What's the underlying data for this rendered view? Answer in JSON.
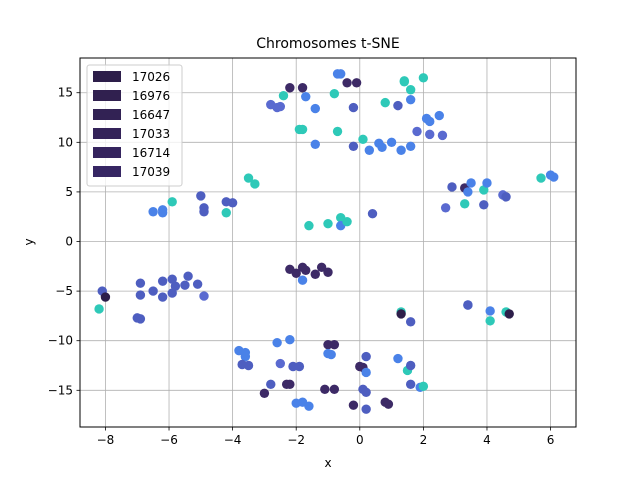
{
  "chart_data": {
    "type": "scatter",
    "title": "Chromosomes t-SNE",
    "xlabel": "x",
    "ylabel": "y",
    "xlim": [
      -8.8,
      6.8
    ],
    "ylim": [
      -18.7,
      18.5
    ],
    "xticks": [
      -8,
      -6,
      -4,
      -2,
      0,
      2,
      4,
      6
    ],
    "yticks": [
      -15,
      -10,
      -5,
      0,
      5,
      10,
      15
    ],
    "grid": true,
    "legend": {
      "position": "top-left",
      "entries": [
        {
          "label": "17026",
          "color": "#2d1e4a"
        },
        {
          "label": "16976",
          "color": "#30204f"
        },
        {
          "label": "16647",
          "color": "#322254"
        },
        {
          "label": "17033",
          "color": "#342359"
        },
        {
          "label": "16714",
          "color": "#35245e"
        },
        {
          "label": "17039",
          "color": "#362663"
        }
      ]
    },
    "points": [
      {
        "x": -2.2,
        "y": 15.5,
        "color": "#3d2a66"
      },
      {
        "x": -1.8,
        "y": 15.5,
        "color": "#3d2a66"
      },
      {
        "x": -1.7,
        "y": 14.6,
        "color": "#4a82e8"
      },
      {
        "x": -2.4,
        "y": 14.7,
        "color": "#2ec9b8"
      },
      {
        "x": -2.6,
        "y": 13.5,
        "color": "#5a6ad0"
      },
      {
        "x": -2.8,
        "y": 13.8,
        "color": "#5a6ad0"
      },
      {
        "x": -2.5,
        "y": 13.6,
        "color": "#5a6ad0"
      },
      {
        "x": -1.4,
        "y": 13.4,
        "color": "#4a82e8"
      },
      {
        "x": -1.9,
        "y": 11.3,
        "color": "#2ec9b8"
      },
      {
        "x": -1.8,
        "y": 11.3,
        "color": "#2ec9b8"
      },
      {
        "x": -1.4,
        "y": 9.8,
        "color": "#4a82e8"
      },
      {
        "x": -0.7,
        "y": 16.9,
        "color": "#4a82e8"
      },
      {
        "x": -0.6,
        "y": 16.9,
        "color": "#4a82e8"
      },
      {
        "x": -0.4,
        "y": 16.0,
        "color": "#3d2a66"
      },
      {
        "x": -0.1,
        "y": 16.0,
        "color": "#3d2a66"
      },
      {
        "x": -0.8,
        "y": 14.9,
        "color": "#2ec9b8"
      },
      {
        "x": -0.2,
        "y": 13.5,
        "color": "#4e5ec0"
      },
      {
        "x": -0.7,
        "y": 11.1,
        "color": "#2ec9b8"
      },
      {
        "x": 0.1,
        "y": 10.3,
        "color": "#2ec9b8"
      },
      {
        "x": -0.2,
        "y": 9.6,
        "color": "#4e5ec0"
      },
      {
        "x": 0.3,
        "y": 9.2,
        "color": "#4a82e8"
      },
      {
        "x": 0.6,
        "y": 9.9,
        "color": "#4a82e8"
      },
      {
        "x": 0.7,
        "y": 9.5,
        "color": "#4a82e8"
      },
      {
        "x": 1.0,
        "y": 10.0,
        "color": "#4a82e8"
      },
      {
        "x": 1.3,
        "y": 9.2,
        "color": "#4a82e8"
      },
      {
        "x": 1.6,
        "y": 9.6,
        "color": "#4a82e8"
      },
      {
        "x": 0.8,
        "y": 14.0,
        "color": "#2ec9b8"
      },
      {
        "x": 1.2,
        "y": 13.7,
        "color": "#4e5ec0"
      },
      {
        "x": 1.6,
        "y": 14.3,
        "color": "#4a82e8"
      },
      {
        "x": 1.4,
        "y": 16.1,
        "color": "#2ec9b8"
      },
      {
        "x": 1.4,
        "y": 16.2,
        "color": "#2ec9b8"
      },
      {
        "x": 1.6,
        "y": 15.3,
        "color": "#2ec9b8"
      },
      {
        "x": 2.0,
        "y": 16.5,
        "color": "#2ec9b8"
      },
      {
        "x": 1.8,
        "y": 11.1,
        "color": "#5a6ad0"
      },
      {
        "x": 2.1,
        "y": 12.4,
        "color": "#4a82e8"
      },
      {
        "x": 2.2,
        "y": 12.1,
        "color": "#4a82e8"
      },
      {
        "x": 2.2,
        "y": 10.8,
        "color": "#5a6ad0"
      },
      {
        "x": 2.5,
        "y": 12.7,
        "color": "#4a82e8"
      },
      {
        "x": 2.6,
        "y": 10.7,
        "color": "#5a6ad0"
      },
      {
        "x": -6.5,
        "y": 3.0,
        "color": "#4a82e8"
      },
      {
        "x": -6.2,
        "y": 3.2,
        "color": "#4a82e8"
      },
      {
        "x": -6.2,
        "y": 2.9,
        "color": "#4a82e8"
      },
      {
        "x": -5.9,
        "y": 4.0,
        "color": "#2ec9b8"
      },
      {
        "x": -5.0,
        "y": 4.6,
        "color": "#4e5ec0"
      },
      {
        "x": -4.9,
        "y": 3.4,
        "color": "#4e5ec0"
      },
      {
        "x": -4.9,
        "y": 3.0,
        "color": "#4e5ec0"
      },
      {
        "x": -4.2,
        "y": 4.0,
        "color": "#4e5ec0"
      },
      {
        "x": -4.2,
        "y": 2.9,
        "color": "#2ec9b8"
      },
      {
        "x": -4.0,
        "y": 3.9,
        "color": "#4e5ec0"
      },
      {
        "x": -3.5,
        "y": 6.4,
        "color": "#2ec9b8"
      },
      {
        "x": -3.3,
        "y": 5.8,
        "color": "#2ec9b8"
      },
      {
        "x": -1.6,
        "y": 1.6,
        "color": "#2ec9b8"
      },
      {
        "x": -1.0,
        "y": 1.8,
        "color": "#2ec9b8"
      },
      {
        "x": -0.6,
        "y": 2.4,
        "color": "#2ec9b8"
      },
      {
        "x": -0.6,
        "y": 1.6,
        "color": "#4a82e8"
      },
      {
        "x": -0.4,
        "y": 2.0,
        "color": "#2ec9b8"
      },
      {
        "x": 0.4,
        "y": 2.8,
        "color": "#4e5ec0"
      },
      {
        "x": 2.7,
        "y": 3.4,
        "color": "#5a6ad0"
      },
      {
        "x": 2.9,
        "y": 5.5,
        "color": "#4e5ec0"
      },
      {
        "x": 3.3,
        "y": 5.4,
        "color": "#3d2a66"
      },
      {
        "x": 3.4,
        "y": 5.0,
        "color": "#4a82e8"
      },
      {
        "x": 3.5,
        "y": 5.9,
        "color": "#4a82e8"
      },
      {
        "x": 3.3,
        "y": 3.8,
        "color": "#2ec9b8"
      },
      {
        "x": 3.9,
        "y": 3.7,
        "color": "#4e5ec0"
      },
      {
        "x": 3.9,
        "y": 5.2,
        "color": "#2ec9b8"
      },
      {
        "x": 4.0,
        "y": 5.9,
        "color": "#4a82e8"
      },
      {
        "x": 4.5,
        "y": 4.7,
        "color": "#5a6ad0"
      },
      {
        "x": 4.6,
        "y": 4.5,
        "color": "#4e5ec0"
      },
      {
        "x": 5.7,
        "y": 6.4,
        "color": "#2ec9b8"
      },
      {
        "x": 6.0,
        "y": 6.7,
        "color": "#4a82e8"
      },
      {
        "x": 6.1,
        "y": 6.5,
        "color": "#4a82e8"
      },
      {
        "x": -8.1,
        "y": -5.0,
        "color": "#4e5ec0"
      },
      {
        "x": -8.0,
        "y": -5.6,
        "color": "#2d1e4a"
      },
      {
        "x": -8.2,
        "y": -6.8,
        "color": "#2ec9b8"
      },
      {
        "x": -6.9,
        "y": -4.2,
        "color": "#4e5ec0"
      },
      {
        "x": -6.9,
        "y": -5.4,
        "color": "#4e5ec0"
      },
      {
        "x": -7.0,
        "y": -7.7,
        "color": "#4e5ec0"
      },
      {
        "x": -6.9,
        "y": -7.8,
        "color": "#4e5ec0"
      },
      {
        "x": -6.5,
        "y": -5.0,
        "color": "#4e5ec0"
      },
      {
        "x": -6.2,
        "y": -4.0,
        "color": "#4e5ec0"
      },
      {
        "x": -6.2,
        "y": -5.6,
        "color": "#4e5ec0"
      },
      {
        "x": -5.9,
        "y": -3.8,
        "color": "#4e5ec0"
      },
      {
        "x": -5.9,
        "y": -5.2,
        "color": "#4e5ec0"
      },
      {
        "x": -5.8,
        "y": -4.5,
        "color": "#4e5ec0"
      },
      {
        "x": -5.5,
        "y": -4.4,
        "color": "#4e5ec0"
      },
      {
        "x": -5.4,
        "y": -3.5,
        "color": "#4e5ec0"
      },
      {
        "x": -5.1,
        "y": -4.3,
        "color": "#4e5ec0"
      },
      {
        "x": -4.9,
        "y": -5.5,
        "color": "#5a6ad0"
      },
      {
        "x": -2.2,
        "y": -2.8,
        "color": "#3d2a66"
      },
      {
        "x": -2.0,
        "y": -3.2,
        "color": "#3d2a66"
      },
      {
        "x": -1.8,
        "y": -2.6,
        "color": "#3d2a66"
      },
      {
        "x": -1.7,
        "y": -2.9,
        "color": "#3d2a66"
      },
      {
        "x": -1.4,
        "y": -3.3,
        "color": "#3d2a66"
      },
      {
        "x": -1.2,
        "y": -2.6,
        "color": "#3d2a66"
      },
      {
        "x": -1.0,
        "y": -3.1,
        "color": "#3d2a66"
      },
      {
        "x": -1.8,
        "y": -3.9,
        "color": "#4a82e8"
      },
      {
        "x": 1.3,
        "y": -7.1,
        "color": "#2ec9b8"
      },
      {
        "x": 1.3,
        "y": -7.3,
        "color": "#2d1e4a"
      },
      {
        "x": 1.6,
        "y": -8.1,
        "color": "#4e5ec0"
      },
      {
        "x": 3.4,
        "y": -6.4,
        "color": "#4a82e8"
      },
      {
        "x": 3.4,
        "y": -6.4,
        "color": "#4e5ec0"
      },
      {
        "x": 4.1,
        "y": -7.0,
        "color": "#4a82e8"
      },
      {
        "x": 4.1,
        "y": -8.0,
        "color": "#2ec9b8"
      },
      {
        "x": 4.6,
        "y": -7.1,
        "color": "#2ec9b8"
      },
      {
        "x": 4.7,
        "y": -7.3,
        "color": "#2d1e4a"
      },
      {
        "x": -3.8,
        "y": -11.0,
        "color": "#4a82e8"
      },
      {
        "x": -3.6,
        "y": -11.2,
        "color": "#4a82e8"
      },
      {
        "x": -3.6,
        "y": -11.6,
        "color": "#4a82e8"
      },
      {
        "x": -3.7,
        "y": -12.4,
        "color": "#4e5ec0"
      },
      {
        "x": -3.5,
        "y": -12.5,
        "color": "#4e5ec0"
      },
      {
        "x": -2.6,
        "y": -10.2,
        "color": "#4a82e8"
      },
      {
        "x": -2.2,
        "y": -9.9,
        "color": "#4a82e8"
      },
      {
        "x": -2.5,
        "y": -12.3,
        "color": "#5a6ad0"
      },
      {
        "x": -2.1,
        "y": -12.6,
        "color": "#4e5ec0"
      },
      {
        "x": -1.9,
        "y": -12.6,
        "color": "#4e5ec0"
      },
      {
        "x": -2.8,
        "y": -14.4,
        "color": "#4e5ec0"
      },
      {
        "x": -2.3,
        "y": -14.4,
        "color": "#3d2a66"
      },
      {
        "x": -2.2,
        "y": -14.4,
        "color": "#3d2a66"
      },
      {
        "x": -3.0,
        "y": -15.3,
        "color": "#3d2a66"
      },
      {
        "x": -2.0,
        "y": -16.3,
        "color": "#4a82e8"
      },
      {
        "x": -1.8,
        "y": -16.2,
        "color": "#4a82e8"
      },
      {
        "x": -1.6,
        "y": -16.6,
        "color": "#4a82e8"
      },
      {
        "x": -1.1,
        "y": -14.9,
        "color": "#3d2a66"
      },
      {
        "x": -0.8,
        "y": -14.9,
        "color": "#3d2a66"
      },
      {
        "x": -1.0,
        "y": -10.4,
        "color": "#3d2a66"
      },
      {
        "x": -0.8,
        "y": -10.4,
        "color": "#3d2a66"
      },
      {
        "x": -1.0,
        "y": -11.3,
        "color": "#4a82e8"
      },
      {
        "x": -0.9,
        "y": -11.4,
        "color": "#4a82e8"
      },
      {
        "x": -0.2,
        "y": -16.5,
        "color": "#3d2a66"
      },
      {
        "x": 0.0,
        "y": -12.6,
        "color": "#3d2a66"
      },
      {
        "x": 0.1,
        "y": -12.7,
        "color": "#3d2a66"
      },
      {
        "x": 0.2,
        "y": -11.6,
        "color": "#4e5ec0"
      },
      {
        "x": 0.2,
        "y": -13.2,
        "color": "#4a82e8"
      },
      {
        "x": 0.1,
        "y": -14.9,
        "color": "#4e5ec0"
      },
      {
        "x": 0.2,
        "y": -15.2,
        "color": "#4e5ec0"
      },
      {
        "x": 0.2,
        "y": -16.9,
        "color": "#4e5ec0"
      },
      {
        "x": 0.8,
        "y": -16.2,
        "color": "#3d2a66"
      },
      {
        "x": 0.9,
        "y": -16.4,
        "color": "#3d2a66"
      },
      {
        "x": 1.2,
        "y": -11.8,
        "color": "#4a82e8"
      },
      {
        "x": 1.5,
        "y": -13.0,
        "color": "#2ec9b8"
      },
      {
        "x": 1.6,
        "y": -12.5,
        "color": "#4e5ec0"
      },
      {
        "x": 1.6,
        "y": -14.4,
        "color": "#4e5ec0"
      },
      {
        "x": 1.9,
        "y": -14.7,
        "color": "#4a82e8"
      },
      {
        "x": 2.0,
        "y": -14.6,
        "color": "#2ec9b8"
      }
    ]
  }
}
